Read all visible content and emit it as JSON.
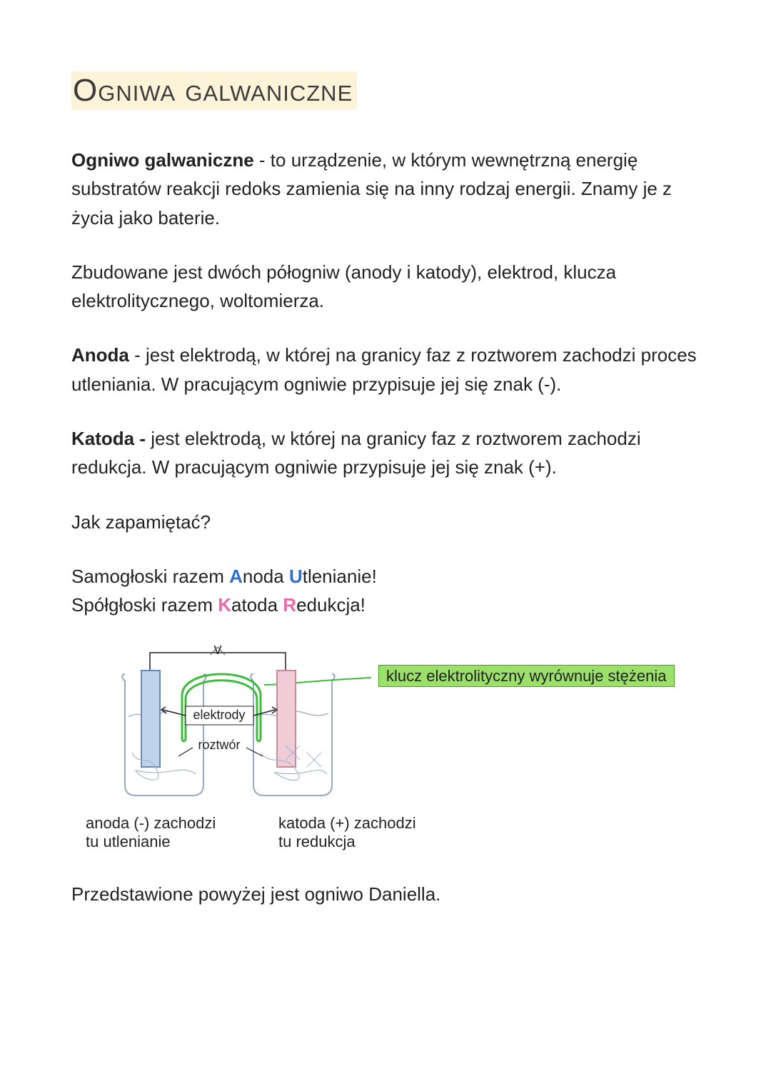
{
  "title": "Ogniwa galwaniczne",
  "p1_bold": "Ogniwo galwaniczne",
  "p1_rest": " - to urządzenie, w którym wewnętrzną energię substratów reakcji redoks zamienia się na inny rodzaj energii. Znamy je z życia jako baterie.",
  "p2": "Zbudowane jest dwóch półogniw (anody i katody), elektrod, klucza elektrolitycznego, woltomierza.",
  "p3_bold": "Anoda",
  "p3_rest": " - jest elektrodą, w której na granicy faz z roztworem zachodzi proces utleniania. W pracującym ogniwie przypisuje jej się znak (-).",
  "p4_bold": "Katoda  -",
  "p4_rest": "  jest elektrodą, w której na granicy faz z roztworem zachodzi redukcja. W pracującym ogniwie przypisuje jej się znak (+).",
  "p5": "Jak zapamiętać?",
  "mnem1_pre": "Samogłoski razem ",
  "mnem1_A": "A",
  "mnem1_noda": "noda ",
  "mnem1_U": "U",
  "mnem1_tlenianie": "tlenianie!",
  "mnem2_pre": "Spółgłoski razem ",
  "mnem2_K": "K",
  "mnem2_atoda": "atoda ",
  "mnem2_R": "R",
  "mnem2_edukcja": "edukcja!",
  "diagram": {
    "label_elektrody": "elektrody",
    "label_roztwor": "roztwór",
    "label_v": "V",
    "callout": "klucz elektrolityczny wyrównuje stężenia",
    "cap_left_1": "anoda (-) zachodzi",
    "cap_left_2": "tu utlenianie",
    "cap_right_1": "katoda (+) zachodzi",
    "cap_right_2": "tu redukcja",
    "colors": {
      "beaker_stroke": "#9aa6c4",
      "anode_fill": "#bfd3ea",
      "anode_stroke": "#6b87b7",
      "cathode_fill": "#f0cdd6",
      "cathode_stroke": "#c78c9b",
      "bridge": "#3dbb3d",
      "wire": "#555555",
      "callout_bg": "#9be06a",
      "callout_border": "#4aa01f",
      "squiggle": "#a8b5c9",
      "text": "#222222"
    }
  },
  "p_last": "Przedstawione powyżej jest ogniwo Daniella."
}
